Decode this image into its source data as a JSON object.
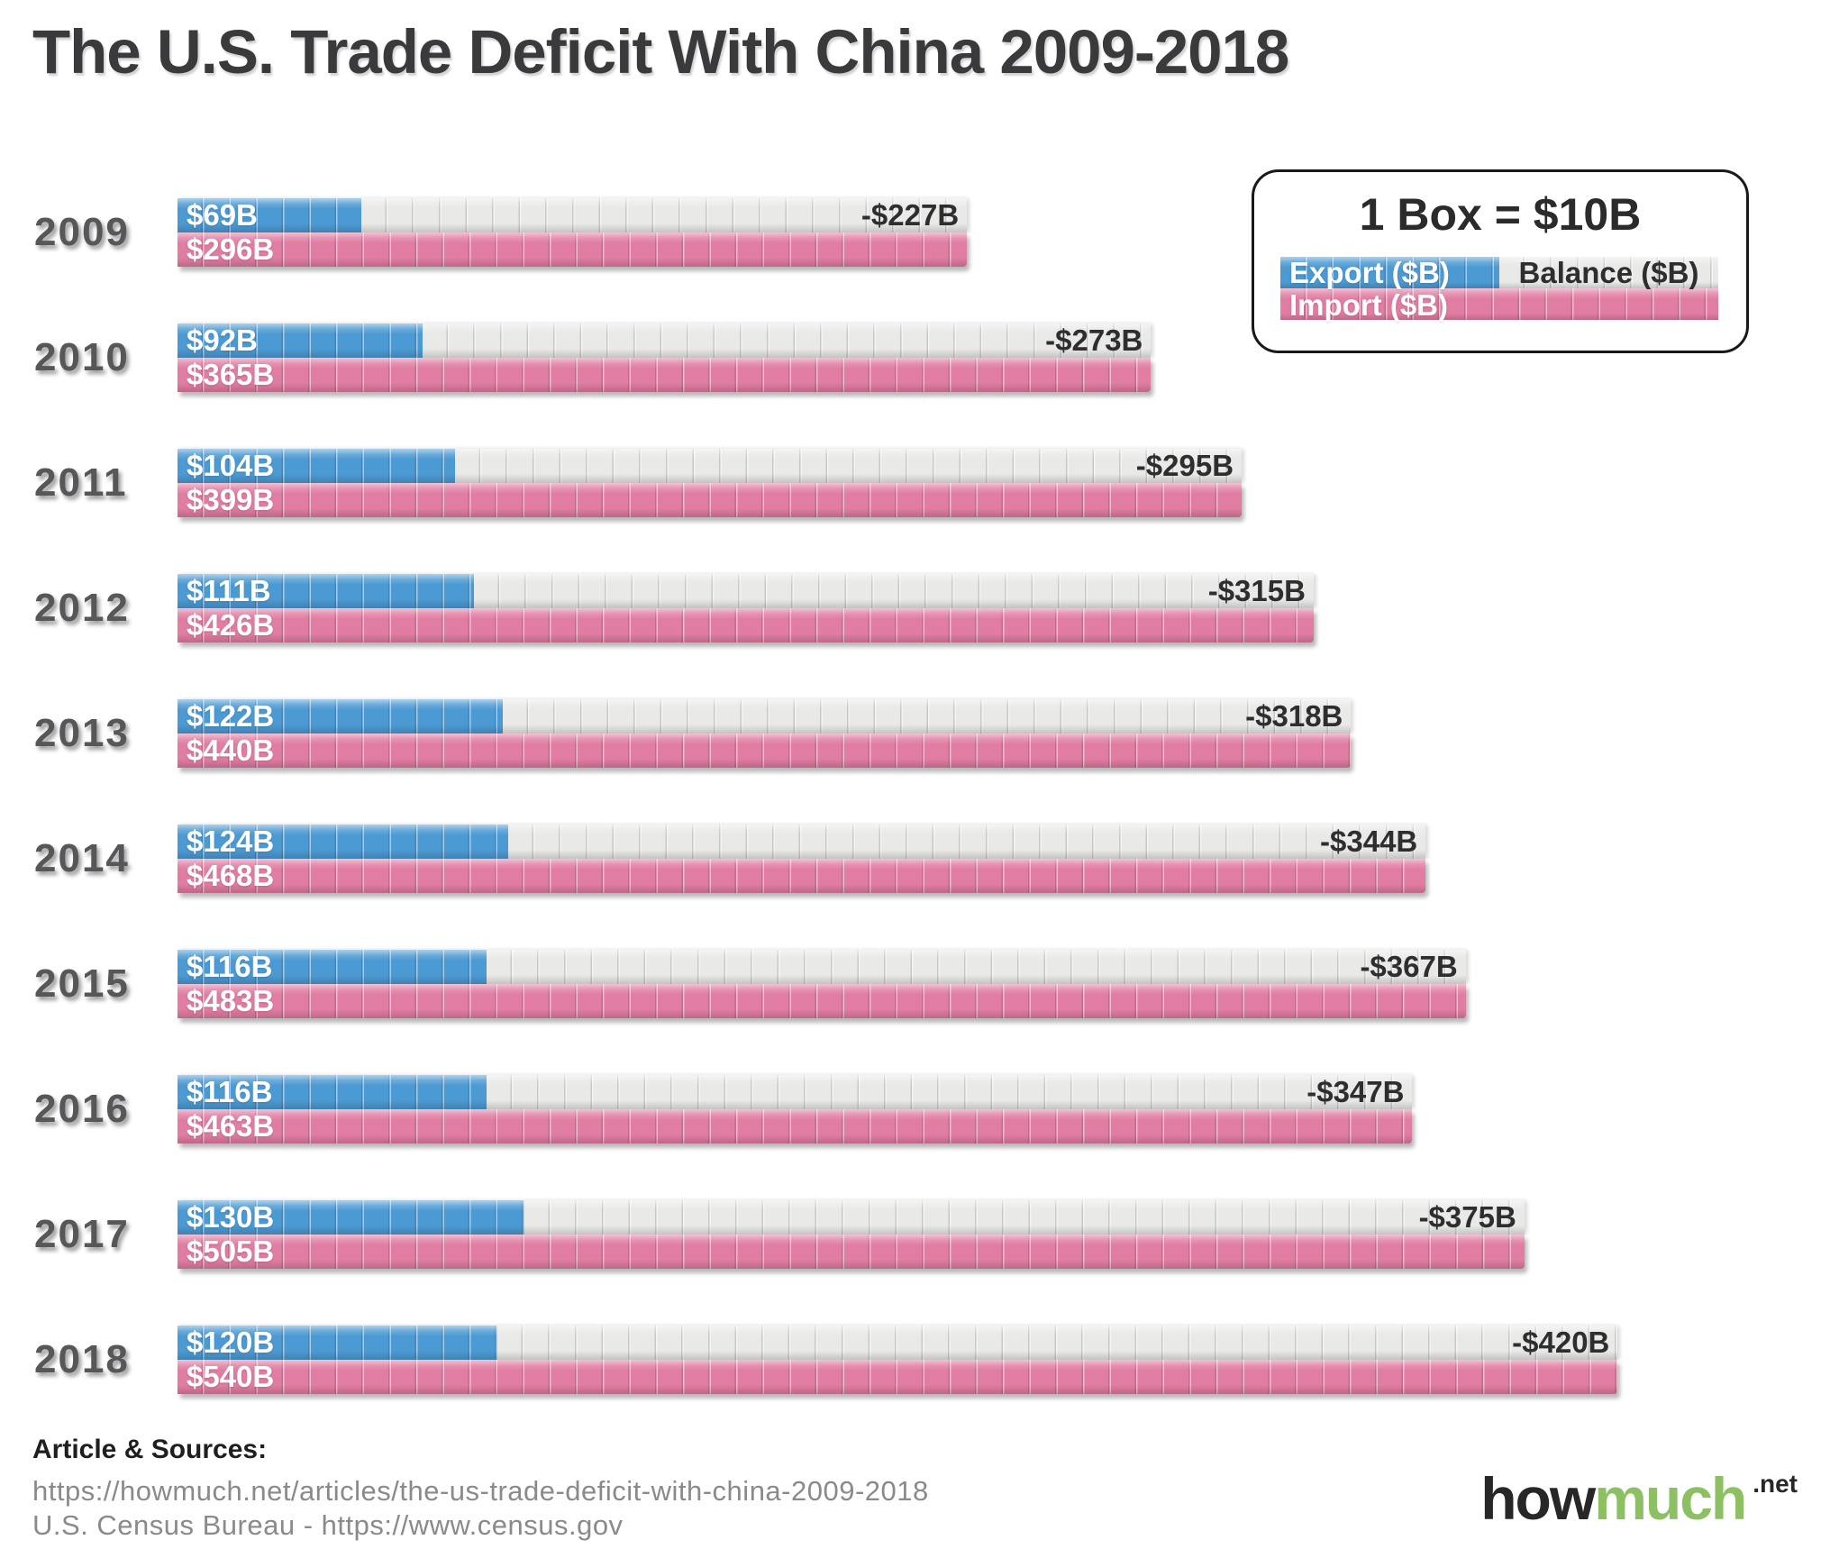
{
  "title": "The U.S. Trade Deficit With China 2009-2018",
  "legend": {
    "heading": "1 Box = $10B",
    "export_label": "Export ($B)",
    "balance_label": "Balance ($B)",
    "import_label": "Import ($B)"
  },
  "footer": {
    "sources_heading": "Article & Sources:",
    "source_line1": "https://howmuch.net/articles/the-us-trade-deficit-with-china-2009-2018",
    "source_line2": "U.S. Census Bureau - https://www.census.gov",
    "logo_part1": "how",
    "logo_part2": "much",
    "logo_suffix": ".net"
  },
  "colors": {
    "export_blue": "#4c9ad3",
    "import_pink": "#e17ca2",
    "balance_gray": "#e9e9e7",
    "title_dark": "#3a3a3c",
    "year_gray": "#57575a",
    "footer_gray": "#8a8a8a",
    "logo_green": "#8dc063"
  },
  "chart_data": {
    "type": "bar",
    "title": "The U.S. Trade Deficit With China 2009-2018",
    "unit": "USD billions",
    "box_value_b": 10,
    "legend_note": "1 Box = $10B",
    "orientation": "horizontal",
    "categories": [
      "2009",
      "2010",
      "2011",
      "2012",
      "2013",
      "2014",
      "2015",
      "2016",
      "2017",
      "2018"
    ],
    "series": [
      {
        "name": "Export ($B)",
        "values": [
          69,
          92,
          104,
          111,
          122,
          124,
          116,
          116,
          130,
          120
        ]
      },
      {
        "name": "Import ($B)",
        "values": [
          296,
          365,
          399,
          426,
          440,
          468,
          483,
          463,
          505,
          540
        ]
      },
      {
        "name": "Balance ($B)",
        "values": [
          -227,
          -273,
          -295,
          -315,
          -318,
          -344,
          -367,
          -347,
          -375,
          -420
        ]
      }
    ],
    "rows": [
      {
        "year": "2009",
        "export_b": 69,
        "import_b": 296,
        "export_label": "$69B",
        "import_label": "$296B",
        "balance_label": "-$227B"
      },
      {
        "year": "2010",
        "export_b": 92,
        "import_b": 365,
        "export_label": "$92B",
        "import_label": "$365B",
        "balance_label": "-$273B"
      },
      {
        "year": "2011",
        "export_b": 104,
        "import_b": 399,
        "export_label": "$104B",
        "import_label": "$399B",
        "balance_label": "-$295B"
      },
      {
        "year": "2012",
        "export_b": 111,
        "import_b": 426,
        "export_label": "$111B",
        "import_label": "$426B",
        "balance_label": "-$315B"
      },
      {
        "year": "2013",
        "export_b": 122,
        "import_b": 440,
        "export_label": "$122B",
        "import_label": "$440B",
        "balance_label": "-$318B"
      },
      {
        "year": "2014",
        "export_b": 124,
        "import_b": 468,
        "export_label": "$124B",
        "import_label": "$468B",
        "balance_label": "-$344B"
      },
      {
        "year": "2015",
        "export_b": 116,
        "import_b": 483,
        "export_label": "$116B",
        "import_label": "$483B",
        "balance_label": "-$367B"
      },
      {
        "year": "2016",
        "export_b": 116,
        "import_b": 463,
        "export_label": "$116B",
        "import_label": "$463B",
        "balance_label": "-$347B"
      },
      {
        "year": "2017",
        "export_b": 130,
        "import_b": 505,
        "export_label": "$130B",
        "import_label": "$505B",
        "balance_label": "-$375B"
      },
      {
        "year": "2018",
        "export_b": 120,
        "import_b": 540,
        "export_label": "$120B",
        "import_label": "$540B",
        "balance_label": "-$420B"
      }
    ]
  }
}
